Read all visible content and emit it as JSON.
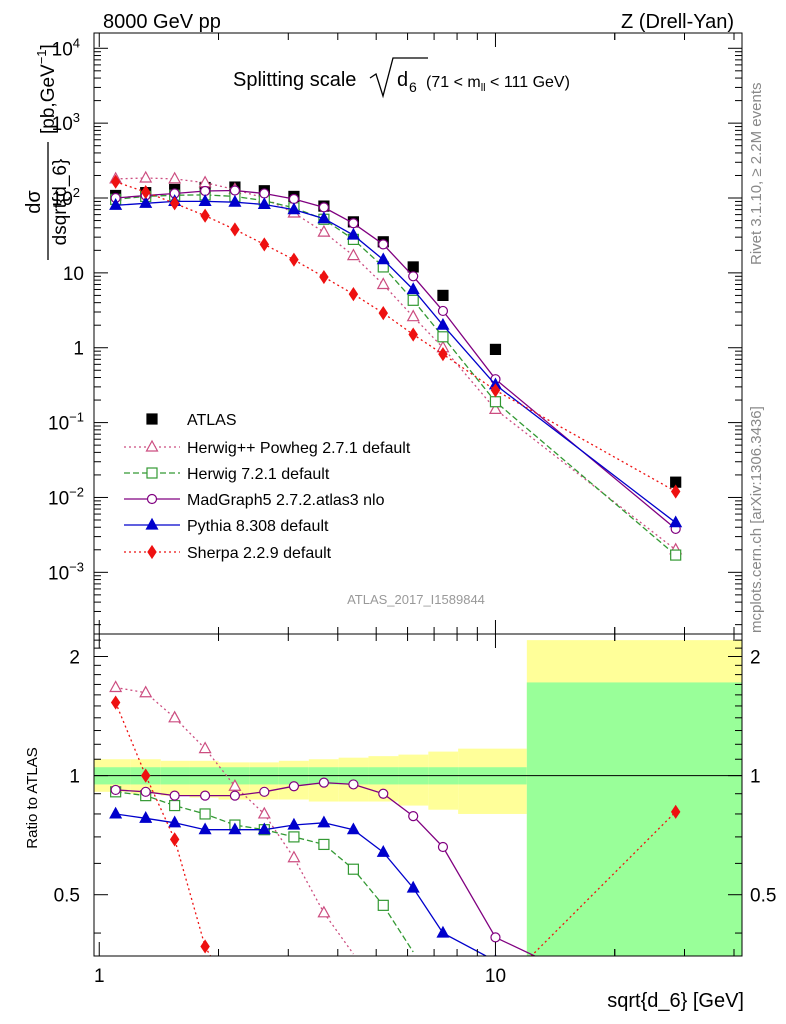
{
  "header": {
    "left": "8000 GeV pp",
    "right": "Z (Drell-Yan)"
  },
  "side_labels": {
    "rivet": "Rivet 3.1.10, ≥ 2.2M events",
    "mcplots": "mcplots.cern.ch [arXiv:1306.3436]"
  },
  "analysis_tag": "ATLAS_2017_I1589844",
  "title": {
    "main": "Splitting scale",
    "sub": "6",
    "range_pre": "(71 < m",
    "range_sub": "ll",
    "range_post": " < 111 GeV)"
  },
  "axes": {
    "y_main_label": "dσ / dsqrt{d_6} [pb,GeV⁻¹]",
    "y_main_top": "dσ",
    "y_main_bottom": "dsqrt{d_6}",
    "y_main_units": "[pb,GeV",
    "y_ratio_label": "Ratio to ATLAS",
    "x_label": "sqrt{d_6} [GeV]",
    "y_main_ticks": [
      {
        "v": 10000,
        "base": "10",
        "exp": "4"
      },
      {
        "v": 1000,
        "base": "10",
        "exp": "3"
      },
      {
        "v": 100,
        "base": "10",
        "exp": "2"
      },
      {
        "v": 10,
        "base": "10",
        "exp": ""
      },
      {
        "v": 1,
        "base": "1",
        "exp": ""
      },
      {
        "v": 0.1,
        "base": "10",
        "exp": "−1"
      },
      {
        "v": 0.01,
        "base": "10",
        "exp": "−2"
      },
      {
        "v": 0.001,
        "base": "10",
        "exp": "−3"
      }
    ],
    "y_ratio_ticks": [
      {
        "v": 0.5,
        "label": "0.5"
      },
      {
        "v": 1,
        "label": "1"
      },
      {
        "v": 2,
        "label": "2"
      }
    ],
    "x_ticks": [
      {
        "v": 1,
        "label": "1"
      },
      {
        "v": 10,
        "label": "10"
      }
    ]
  },
  "chart_data": {
    "type": "scatter",
    "x_scale": "log",
    "y_scale": "log",
    "xlim": [
      0.97,
      41.9
    ],
    "ylim_main": [
      0.00015,
      16000
    ],
    "ylim_ratio": [
      0.35,
      2.28
    ],
    "legend_placement": "bottom-left",
    "x": [
      1.1,
      1.31,
      1.55,
      1.85,
      2.2,
      2.61,
      3.1,
      3.69,
      4.38,
      5.21,
      6.2,
      7.37,
      10.0,
      28.5
    ],
    "series": [
      {
        "name": "ATLAS",
        "color": "#000000",
        "marker": "square-filled",
        "line": "none",
        "values": [
          108,
          118,
          130,
          138,
          140,
          125,
          105,
          78,
          48,
          26,
          12,
          5.0,
          0.95,
          0.016
        ],
        "ratio": [
          1,
          1,
          1,
          1,
          1,
          1,
          1,
          1,
          1,
          1,
          1,
          1,
          1,
          1
        ]
      },
      {
        "name": "Herwig++ Powheg 2.7.1 default",
        "color": "#cc4d80",
        "marker": "triangle-open",
        "line": "dotted",
        "values": [
          180,
          185,
          180,
          160,
          130,
          100,
          63,
          35,
          17,
          7.0,
          2.6,
          1.0,
          0.15,
          0.002
        ],
        "ratio": [
          1.67,
          1.62,
          1.4,
          1.17,
          0.94,
          0.8,
          0.62,
          0.45,
          null,
          null,
          null,
          null,
          null,
          null
        ]
      },
      {
        "name": "Herwig 7.2.1 default",
        "color": "#339933",
        "marker": "square-open",
        "line": "dashed",
        "values": [
          96,
          105,
          109,
          110,
          105,
          92,
          74,
          52,
          28,
          12,
          4.3,
          1.4,
          0.19,
          0.0017
        ],
        "ratio": [
          0.91,
          0.89,
          0.84,
          0.8,
          0.75,
          0.73,
          0.7,
          0.67,
          0.58,
          0.47,
          null,
          null,
          null,
          null
        ]
      },
      {
        "name": "MadGraph5 2.7.2.atlas3 nlo",
        "color": "#800080",
        "marker": "circle-open",
        "line": "solid",
        "values": [
          100,
          108,
          115,
          124,
          126,
          115,
          97,
          75,
          46,
          24,
          9.0,
          3.1,
          0.38,
          0.0038
        ],
        "ratio": [
          0.92,
          0.91,
          0.89,
          0.89,
          0.89,
          0.91,
          0.94,
          0.96,
          0.95,
          0.9,
          0.79,
          0.66,
          0.39,
          null
        ]
      },
      {
        "name": "Pythia 8.308 default",
        "color": "#0000cc",
        "marker": "triangle-filled",
        "line": "solid",
        "values": [
          80,
          85,
          90,
          90,
          88,
          82,
          70,
          53,
          32,
          15,
          6.0,
          2.0,
          0.32,
          0.0046
        ],
        "ratio": [
          0.8,
          0.78,
          0.76,
          0.73,
          0.73,
          0.73,
          0.75,
          0.76,
          0.73,
          0.64,
          0.52,
          0.4,
          0.34,
          null
        ]
      },
      {
        "name": "Sherpa 2.2.9 default",
        "color": "#ee1111",
        "marker": "diamond-filled",
        "line": "dotted",
        "values": [
          165,
          120,
          85,
          58,
          38,
          24,
          15,
          8.8,
          5.2,
          2.9,
          1.5,
          0.82,
          0.27,
          0.012
        ],
        "ratio": [
          1.53,
          1.0,
          0.69,
          0.37,
          null,
          null,
          null,
          null,
          null,
          null,
          null,
          null,
          null,
          0.81
        ]
      }
    ],
    "ratio_bands": {
      "edges": [
        0.97,
        1.2,
        1.43,
        1.69,
        2.0,
        2.39,
        2.84,
        3.38,
        4.02,
        4.78,
        5.69,
        6.77,
        8.05,
        12.0,
        41.9
      ],
      "inner_lo": [
        0.95,
        0.95,
        0.95,
        0.95,
        0.95,
        0.95,
        0.95,
        0.95,
        0.95,
        0.95,
        0.95,
        0.95,
        0.95,
        0.35
      ],
      "inner_hi": [
        1.05,
        1.05,
        1.05,
        1.05,
        1.05,
        1.05,
        1.05,
        1.05,
        1.05,
        1.05,
        1.05,
        1.05,
        1.05,
        1.72
      ],
      "outer_lo": [
        0.91,
        0.9,
        0.89,
        0.88,
        0.87,
        0.87,
        0.87,
        0.86,
        0.86,
        0.86,
        0.84,
        0.82,
        0.8,
        0.35
      ],
      "outer_hi": [
        1.1,
        1.1,
        1.09,
        1.09,
        1.08,
        1.08,
        1.09,
        1.1,
        1.11,
        1.12,
        1.13,
        1.15,
        1.17,
        2.2
      ],
      "inner_color": "#99ff99",
      "outer_color": "#ffff99"
    }
  }
}
